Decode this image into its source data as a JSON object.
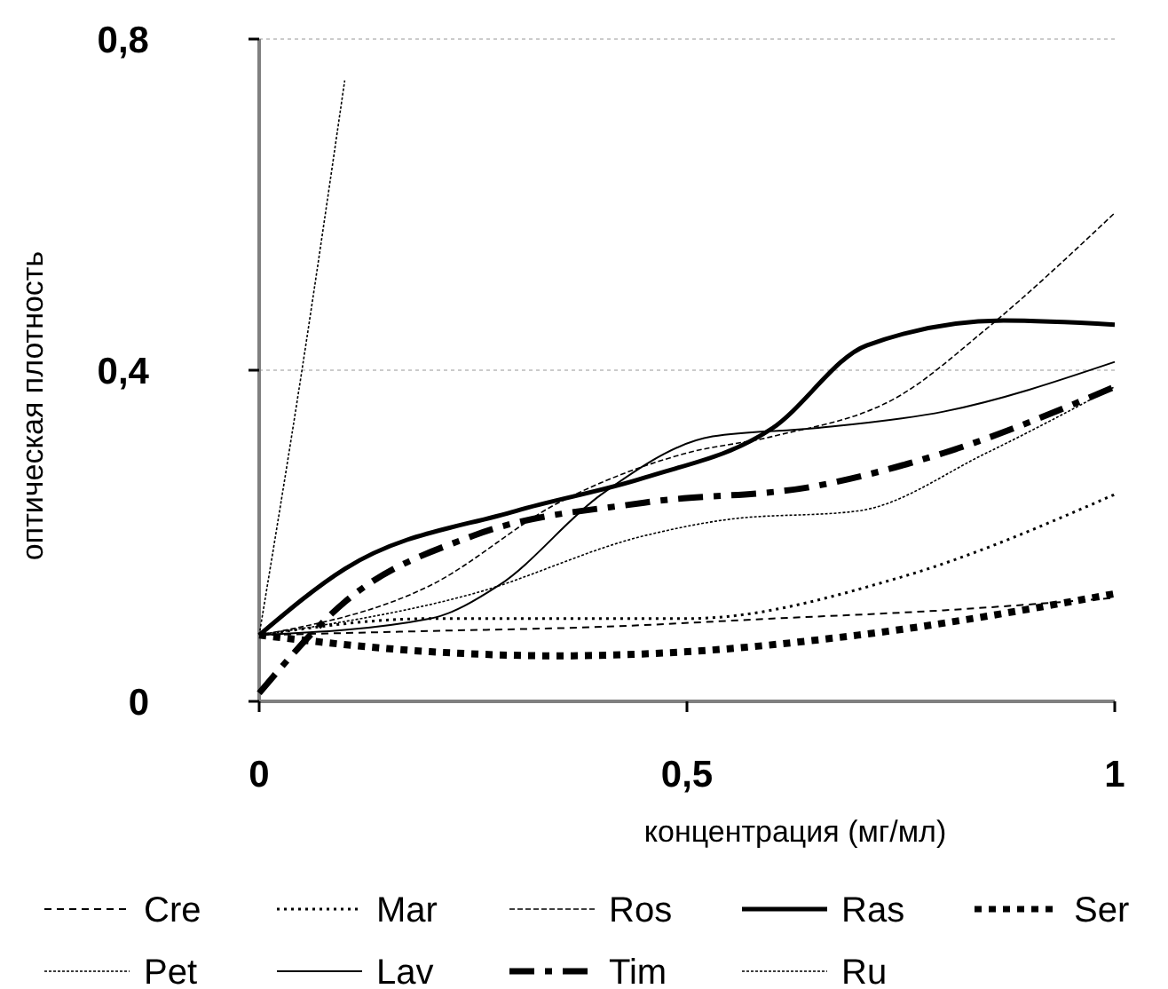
{
  "chart_data": {
    "type": "line",
    "xlabel": "концентрация (мг/мл)",
    "ylabel": "оптическая плотность",
    "xlim": [
      0,
      1
    ],
    "ylim": [
      0,
      0.8
    ],
    "xticks": [
      0,
      {
        "value": 0.5,
        "label": "0,5"
      },
      1
    ],
    "yticks": [
      0,
      {
        "value": 0.4,
        "label": "0,4"
      },
      {
        "value": 0.8,
        "label": "0,8"
      }
    ],
    "grid": "y",
    "legend": "bottom",
    "series": [
      {
        "name": "Cre",
        "color": "#000000",
        "line_style": "dashed",
        "x": [
          0,
          0.2,
          0.4,
          0.6,
          0.8,
          1
        ],
        "values": [
          0.08,
          0.085,
          0.09,
          0.1,
          0.11,
          0.125
        ]
      },
      {
        "name": "Mar",
        "color": "#000000",
        "line_style": "dotted",
        "x": [
          0,
          0.2,
          0.35,
          0.5,
          0.75,
          1
        ],
        "values": [
          0.08,
          0.1,
          0.1,
          0.1,
          0.15,
          0.25
        ]
      },
      {
        "name": "Ros",
        "color": "#000000",
        "line_style": "dashed",
        "x": [
          0,
          0.2,
          0.35,
          0.5,
          0.6,
          0.75,
          0.85,
          1
        ],
        "values": [
          0.08,
          0.14,
          0.24,
          0.3,
          0.32,
          0.37,
          0.45,
          0.59
        ]
      },
      {
        "name": "Ras",
        "color": "#000000",
        "line_style": "solid",
        "x": [
          0,
          0.1,
          0.3,
          0.45,
          0.6,
          0.71,
          0.87,
          1
        ],
        "values": [
          0.08,
          0.16,
          0.23,
          0.27,
          0.33,
          0.43,
          0.46,
          0.455
        ]
      },
      {
        "name": "Ser",
        "color": "#000000",
        "line_style": "dotted",
        "x": [
          0,
          0.2,
          0.35,
          0.5,
          0.7,
          1
        ],
        "values": [
          0.08,
          0.06,
          0.055,
          0.06,
          0.08,
          0.13
        ]
      },
      {
        "name": "Pet",
        "color": "#000000",
        "line_style": "dotted",
        "x": [
          0,
          0.05,
          0.1
        ],
        "values": [
          0.08,
          0.4,
          0.75
        ]
      },
      {
        "name": "Lav",
        "color": "#000000",
        "line_style": "solid",
        "x": [
          0,
          0.2,
          0.28,
          0.4,
          0.53,
          0.65,
          0.8,
          1
        ],
        "values": [
          0.08,
          0.1,
          0.14,
          0.25,
          0.32,
          0.33,
          0.35,
          0.41
        ]
      },
      {
        "name": "Tim",
        "color": "#000000",
        "line_style": "dashed",
        "x": [
          0,
          0.1,
          0.25,
          0.45,
          0.65,
          0.8,
          1
        ],
        "values": [
          0.01,
          0.12,
          0.2,
          0.24,
          0.26,
          0.3,
          0.38
        ]
      },
      {
        "name": "Ru",
        "color": "#000000",
        "line_style": "dotted",
        "x": [
          0,
          0.25,
          0.45,
          0.55,
          0.7,
          0.85,
          1
        ],
        "values": [
          0.08,
          0.13,
          0.2,
          0.22,
          0.23,
          0.3,
          0.38
        ]
      }
    ]
  }
}
